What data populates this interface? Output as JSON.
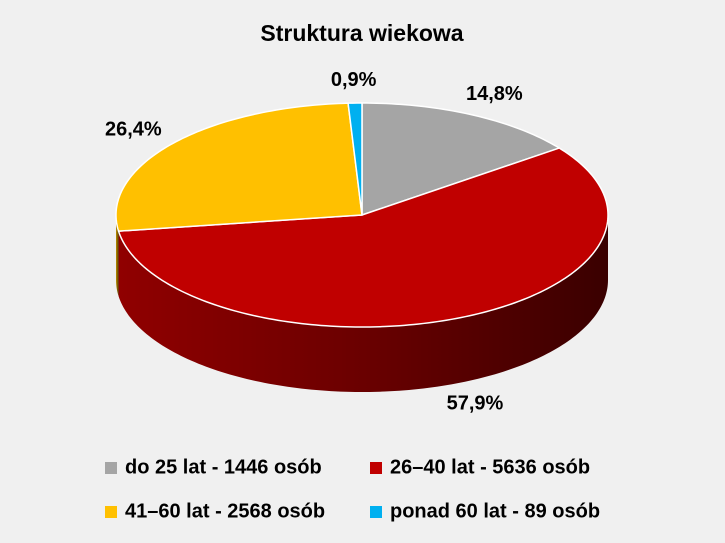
{
  "chart_data": {
    "type": "pie3d",
    "title": "Struktura wiekowa",
    "categories": [
      "do 25 lat - 1446 osób",
      "26–40 lat - 5636 osób",
      "41–60 lat - 2568 osób",
      "ponad 60 lat - 89 osób"
    ],
    "values": [
      14.8,
      57.9,
      26.4,
      0.9
    ],
    "value_labels": [
      "14,8%",
      "57,9%",
      "26,4%",
      "0,9%"
    ],
    "colors": [
      "#a5a5a5",
      "#c00000",
      "#ffc000",
      "#00b0f0"
    ],
    "legend": "bottom"
  }
}
